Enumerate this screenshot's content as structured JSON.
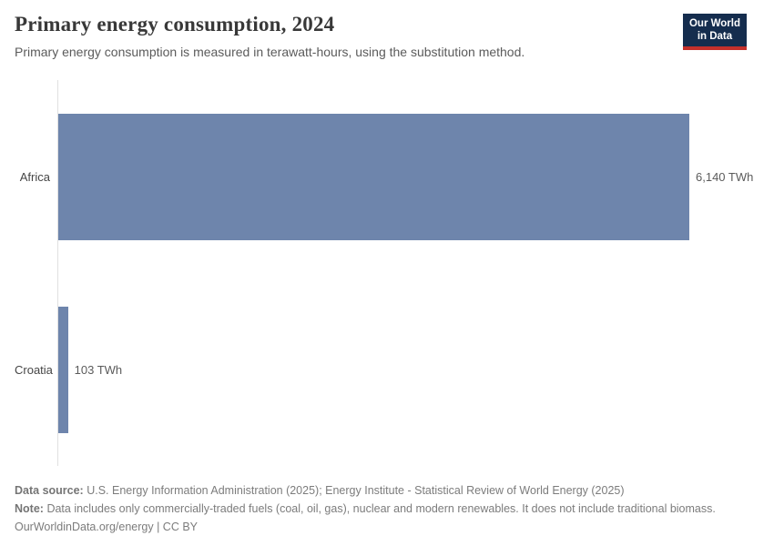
{
  "header": {
    "title": "Primary energy consumption, 2024",
    "subtitle": "Primary energy consumption is measured in terawatt-hours, using the substitution method.",
    "logo_line1": "Our World",
    "logo_line2": "in Data",
    "logo_navy": "#152d4e",
    "logo_red": "#c5302b"
  },
  "chart_data": {
    "type": "bar",
    "orientation": "horizontal",
    "title": "Primary energy consumption, 2024",
    "categories": [
      "Africa",
      "Croatia"
    ],
    "values": [
      6140,
      103
    ],
    "value_labels": [
      "6,140 TWh",
      "103 TWh"
    ],
    "unit": "TWh",
    "xlabel": "",
    "ylabel": "",
    "xlim": [
      0,
      6140
    ],
    "grid": false,
    "legend": "none",
    "bar_color": "#6e85ac"
  },
  "footer": {
    "source_label": "Data source:",
    "source_text": "U.S. Energy Information Administration (2025); Energy Institute - Statistical Review of World Energy (2025)",
    "note_label": "Note:",
    "note_text": "Data includes only commercially-traded fuels (coal, oil, gas), nuclear and modern renewables. It does not include traditional biomass.",
    "credit": "OurWorldinData.org/energy | CC BY"
  }
}
